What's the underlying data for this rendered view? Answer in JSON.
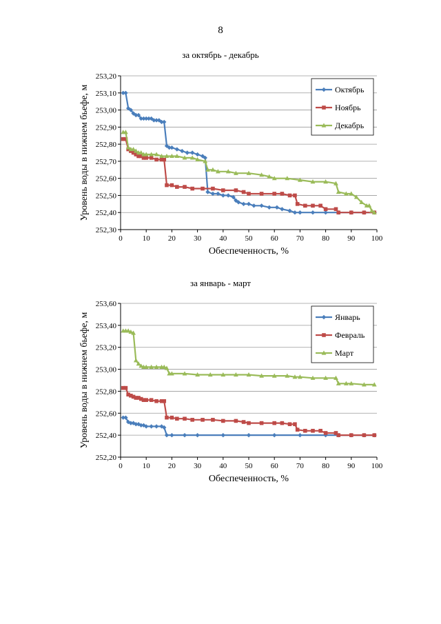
{
  "page": {
    "number": "8"
  },
  "chart_data": [
    {
      "type": "line",
      "title": "за октябрь - декабрь",
      "xlabel": "Обеспеченность, %",
      "ylabel": "Уровень воды в нижнем бьефе, м",
      "xlim": [
        0,
        100
      ],
      "ylim": [
        252.3,
        253.2
      ],
      "xticks": [
        "0",
        "10",
        "20",
        "30",
        "40",
        "50",
        "60",
        "70",
        "80",
        "90",
        "100"
      ],
      "yticks": [
        "252,30",
        "252,40",
        "252,50",
        "252,60",
        "252,70",
        "252,80",
        "252,90",
        "253,00",
        "253,10",
        "253,20"
      ],
      "grid": "horizontal",
      "legend": "top-right",
      "series": [
        {
          "name": "Октябрь",
          "color": "#4a7ebb",
          "marker": "diamond",
          "points": [
            [
              1,
              253.1
            ],
            [
              2,
              253.1
            ],
            [
              3,
              253.01
            ],
            [
              4,
              253.0
            ],
            [
              5,
              252.98
            ],
            [
              6,
              252.97
            ],
            [
              7,
              252.97
            ],
            [
              8,
              252.95
            ],
            [
              9,
              252.95
            ],
            [
              10,
              252.95
            ],
            [
              11,
              252.95
            ],
            [
              12,
              252.95
            ],
            [
              13,
              252.94
            ],
            [
              14,
              252.94
            ],
            [
              15,
              252.94
            ],
            [
              16,
              252.93
            ],
            [
              17,
              252.93
            ],
            [
              18,
              252.79
            ],
            [
              19,
              252.78
            ],
            [
              20,
              252.78
            ],
            [
              22,
              252.77
            ],
            [
              24,
              252.76
            ],
            [
              26,
              252.75
            ],
            [
              28,
              252.75
            ],
            [
              30,
              252.74
            ],
            [
              32,
              252.73
            ],
            [
              33,
              252.72
            ],
            [
              34,
              252.52
            ],
            [
              36,
              252.51
            ],
            [
              38,
              252.51
            ],
            [
              40,
              252.5
            ],
            [
              42,
              252.5
            ],
            [
              44,
              252.49
            ],
            [
              45,
              252.47
            ],
            [
              46,
              252.46
            ],
            [
              48,
              252.45
            ],
            [
              50,
              252.45
            ],
            [
              52,
              252.44
            ],
            [
              55,
              252.44
            ],
            [
              58,
              252.43
            ],
            [
              61,
              252.43
            ],
            [
              63,
              252.42
            ],
            [
              66,
              252.41
            ],
            [
              68,
              252.4
            ],
            [
              70,
              252.4
            ],
            [
              75,
              252.4
            ],
            [
              80,
              252.4
            ],
            [
              85,
              252.4
            ],
            [
              90,
              252.4
            ],
            [
              95,
              252.4
            ],
            [
              99,
              252.4
            ]
          ]
        },
        {
          "name": "Ноябрь",
          "color": "#be4b48",
          "marker": "square",
          "points": [
            [
              1,
              252.83
            ],
            [
              2,
              252.83
            ],
            [
              3,
              252.77
            ],
            [
              4,
              252.76
            ],
            [
              5,
              252.75
            ],
            [
              6,
              252.74
            ],
            [
              7,
              252.73
            ],
            [
              8,
              252.73
            ],
            [
              9,
              252.72
            ],
            [
              10,
              252.72
            ],
            [
              12,
              252.72
            ],
            [
              14,
              252.71
            ],
            [
              16,
              252.71
            ],
            [
              17,
              252.71
            ],
            [
              18,
              252.56
            ],
            [
              20,
              252.56
            ],
            [
              22,
              252.55
            ],
            [
              25,
              252.55
            ],
            [
              28,
              252.54
            ],
            [
              32,
              252.54
            ],
            [
              36,
              252.54
            ],
            [
              40,
              252.53
            ],
            [
              45,
              252.53
            ],
            [
              48,
              252.52
            ],
            [
              50,
              252.51
            ],
            [
              55,
              252.51
            ],
            [
              60,
              252.51
            ],
            [
              63,
              252.51
            ],
            [
              66,
              252.5
            ],
            [
              68,
              252.5
            ],
            [
              69,
              252.45
            ],
            [
              72,
              252.44
            ],
            [
              75,
              252.44
            ],
            [
              78,
              252.44
            ],
            [
              80,
              252.42
            ],
            [
              84,
              252.42
            ],
            [
              85,
              252.4
            ],
            [
              90,
              252.4
            ],
            [
              95,
              252.4
            ],
            [
              99,
              252.4
            ]
          ]
        },
        {
          "name": "Декабрь",
          "color": "#9abb59",
          "marker": "triangle",
          "points": [
            [
              1,
              252.87
            ],
            [
              2,
              252.87
            ],
            [
              3,
              252.78
            ],
            [
              4,
              252.77
            ],
            [
              5,
              252.77
            ],
            [
              6,
              252.76
            ],
            [
              7,
              252.75
            ],
            [
              8,
              252.75
            ],
            [
              9,
              252.74
            ],
            [
              10,
              252.74
            ],
            [
              12,
              252.74
            ],
            [
              14,
              252.74
            ],
            [
              16,
              252.73
            ],
            [
              18,
              252.73
            ],
            [
              20,
              252.73
            ],
            [
              22,
              252.73
            ],
            [
              25,
              252.72
            ],
            [
              28,
              252.72
            ],
            [
              30,
              252.71
            ],
            [
              33,
              252.7
            ],
            [
              34,
              252.65
            ],
            [
              36,
              252.65
            ],
            [
              38,
              252.64
            ],
            [
              42,
              252.64
            ],
            [
              45,
              252.63
            ],
            [
              50,
              252.63
            ],
            [
              55,
              252.62
            ],
            [
              58,
              252.61
            ],
            [
              60,
              252.6
            ],
            [
              65,
              252.6
            ],
            [
              70,
              252.59
            ],
            [
              75,
              252.58
            ],
            [
              80,
              252.58
            ],
            [
              84,
              252.57
            ],
            [
              85,
              252.52
            ],
            [
              88,
              252.51
            ],
            [
              90,
              252.51
            ],
            [
              92,
              252.49
            ],
            [
              94,
              252.46
            ],
            [
              96,
              252.44
            ],
            [
              97,
              252.44
            ],
            [
              98,
              252.41
            ],
            [
              99,
              252.4
            ]
          ]
        }
      ]
    },
    {
      "type": "line",
      "title": "за январь - март",
      "xlabel": "Обеспеченность, %",
      "ylabel": "Уровень воды в нижнем бьефе, м",
      "xlim": [
        0,
        100
      ],
      "ylim": [
        252.2,
        253.6
      ],
      "xticks": [
        "0",
        "10",
        "20",
        "30",
        "40",
        "50",
        "60",
        "70",
        "80",
        "90",
        "100"
      ],
      "yticks": [
        "252,20",
        "252,40",
        "252,60",
        "252,80",
        "253,00",
        "253,20",
        "253,40",
        "253,60"
      ],
      "grid": "horizontal",
      "legend": "top-right",
      "series": [
        {
          "name": "Январь",
          "color": "#4a7ebb",
          "marker": "diamond",
          "points": [
            [
              1,
              252.56
            ],
            [
              2,
              252.56
            ],
            [
              3,
              252.52
            ],
            [
              4,
              252.51
            ],
            [
              5,
              252.51
            ],
            [
              6,
              252.5
            ],
            [
              7,
              252.5
            ],
            [
              8,
              252.49
            ],
            [
              9,
              252.49
            ],
            [
              10,
              252.48
            ],
            [
              12,
              252.48
            ],
            [
              14,
              252.48
            ],
            [
              16,
              252.48
            ],
            [
              17,
              252.47
            ],
            [
              18,
              252.4
            ],
            [
              20,
              252.4
            ],
            [
              25,
              252.4
            ],
            [
              30,
              252.4
            ],
            [
              40,
              252.4
            ],
            [
              50,
              252.4
            ],
            [
              60,
              252.4
            ],
            [
              70,
              252.4
            ],
            [
              80,
              252.4
            ],
            [
              85,
              252.4
            ],
            [
              90,
              252.4
            ],
            [
              95,
              252.4
            ],
            [
              99,
              252.4
            ]
          ]
        },
        {
          "name": "Февраль",
          "color": "#be4b48",
          "marker": "square",
          "points": [
            [
              1,
              252.83
            ],
            [
              2,
              252.83
            ],
            [
              3,
              252.77
            ],
            [
              4,
              252.76
            ],
            [
              5,
              252.75
            ],
            [
              6,
              252.74
            ],
            [
              7,
              252.74
            ],
            [
              8,
              252.73
            ],
            [
              9,
              252.72
            ],
            [
              10,
              252.72
            ],
            [
              12,
              252.72
            ],
            [
              14,
              252.71
            ],
            [
              16,
              252.71
            ],
            [
              17,
              252.71
            ],
            [
              18,
              252.56
            ],
            [
              20,
              252.56
            ],
            [
              22,
              252.55
            ],
            [
              25,
              252.55
            ],
            [
              28,
              252.54
            ],
            [
              32,
              252.54
            ],
            [
              36,
              252.54
            ],
            [
              40,
              252.53
            ],
            [
              45,
              252.53
            ],
            [
              48,
              252.52
            ],
            [
              50,
              252.51
            ],
            [
              55,
              252.51
            ],
            [
              60,
              252.51
            ],
            [
              63,
              252.51
            ],
            [
              66,
              252.5
            ],
            [
              68,
              252.5
            ],
            [
              69,
              252.45
            ],
            [
              72,
              252.44
            ],
            [
              75,
              252.44
            ],
            [
              78,
              252.44
            ],
            [
              80,
              252.42
            ],
            [
              84,
              252.42
            ],
            [
              85,
              252.4
            ],
            [
              90,
              252.4
            ],
            [
              95,
              252.4
            ],
            [
              99,
              252.4
            ]
          ]
        },
        {
          "name": "Март",
          "color": "#9abb59",
          "marker": "triangle",
          "points": [
            [
              1,
              253.35
            ],
            [
              2,
              253.35
            ],
            [
              3,
              253.35
            ],
            [
              4,
              253.34
            ],
            [
              5,
              253.33
            ],
            [
              6,
              253.08
            ],
            [
              7,
              253.05
            ],
            [
              8,
              253.03
            ],
            [
              9,
              253.02
            ],
            [
              10,
              253.02
            ],
            [
              12,
              253.02
            ],
            [
              14,
              253.02
            ],
            [
              16,
              253.02
            ],
            [
              17,
              253.02
            ],
            [
              18,
              253.01
            ],
            [
              19,
              252.96
            ],
            [
              20,
              252.96
            ],
            [
              25,
              252.96
            ],
            [
              30,
              252.95
            ],
            [
              35,
              252.95
            ],
            [
              40,
              252.95
            ],
            [
              45,
              252.95
            ],
            [
              50,
              252.95
            ],
            [
              55,
              252.94
            ],
            [
              60,
              252.94
            ],
            [
              65,
              252.94
            ],
            [
              68,
              252.93
            ],
            [
              70,
              252.93
            ],
            [
              75,
              252.92
            ],
            [
              80,
              252.92
            ],
            [
              84,
              252.92
            ],
            [
              85,
              252.87
            ],
            [
              88,
              252.87
            ],
            [
              90,
              252.87
            ],
            [
              95,
              252.86
            ],
            [
              99,
              252.86
            ]
          ]
        }
      ]
    }
  ]
}
